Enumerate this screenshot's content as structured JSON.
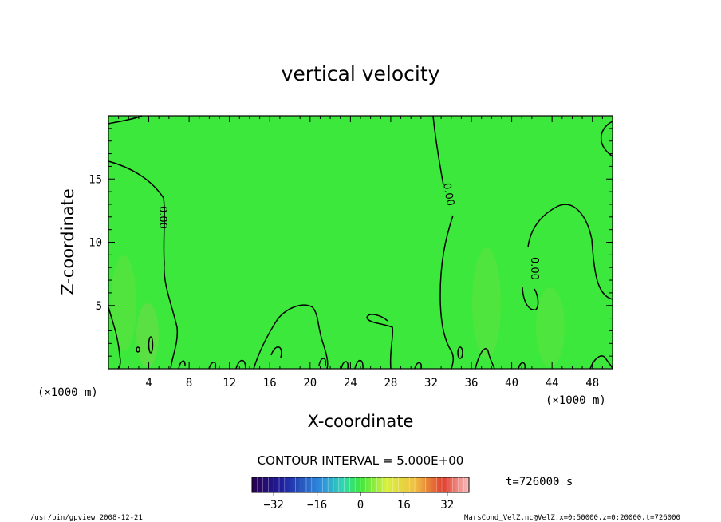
{
  "chart_data": {
    "type": "heatmap",
    "title": "vertical velocity",
    "xlabel": "X-coordinate",
    "ylabel": "Z-coordinate",
    "x_unit_left": "(×1000 m)",
    "x_unit_right": "(×1000 m)",
    "xlim": [
      0,
      50
    ],
    "ylim": [
      0,
      20
    ],
    "x_ticks": [
      4,
      8,
      12,
      16,
      20,
      24,
      28,
      32,
      36,
      40,
      44,
      48
    ],
    "y_ticks": [
      5,
      10,
      15
    ],
    "field_value": 0,
    "contour_label": "0.00",
    "contour_interval_text": "CONTOUR INTERVAL = 5.000E+00",
    "colorbar": {
      "range": [
        -40,
        40
      ],
      "ticks": [
        -32,
        -16,
        0,
        16,
        32
      ],
      "colors": [
        "#2a0050",
        "#1f1fa0",
        "#2e8fe0",
        "#30d8b0",
        "#3be83b",
        "#d8f040",
        "#f0c040",
        "#e04030",
        "#f8c0c0"
      ]
    },
    "time_label": "t=726000 s",
    "footer_left": "/usr/bin/gpview  2008-12-21",
    "footer_right": "MarsCond_VelZ.nc@VelZ,x=0:50000,z=0:20000,t=726000",
    "colors": {
      "field": "#3ce83c",
      "contour": "#000000"
    }
  }
}
